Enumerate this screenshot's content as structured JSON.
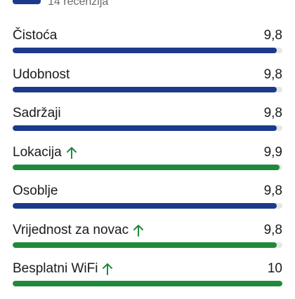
{
  "header": {
    "review_count": "14 recenzija"
  },
  "colors": {
    "standard": "#1c3a8c",
    "high": "#1f8a3b",
    "arrow": "#1f8a3b"
  },
  "categories": [
    {
      "label": "Čistoća",
      "value": "9,8",
      "score": 9.8,
      "high": false
    },
    {
      "label": "Udobnost",
      "value": "9,8",
      "score": 9.8,
      "high": false
    },
    {
      "label": "Sadržaji",
      "value": "9,8",
      "score": 9.8,
      "high": false
    },
    {
      "label": "Lokacija",
      "value": "9,9",
      "score": 9.9,
      "high": true,
      "icon": "arrow-up-icon"
    },
    {
      "label": "Osoblje",
      "value": "9,8",
      "score": 9.8,
      "high": false
    },
    {
      "label": "Vrijednost za novac",
      "value": "9,8",
      "score": 9.8,
      "high": true,
      "icon": "arrow-up-icon"
    },
    {
      "label": "Besplatni WiFi",
      "value": "10",
      "score": 10,
      "high": true,
      "icon": "arrow-up-icon"
    }
  ]
}
